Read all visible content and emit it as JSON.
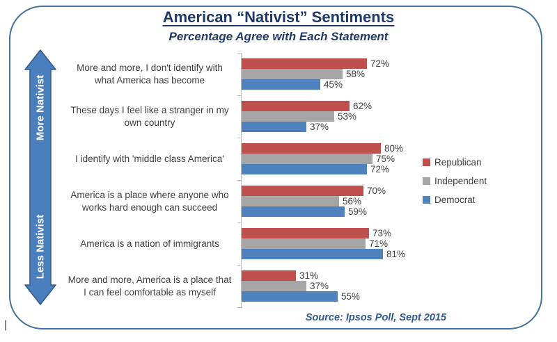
{
  "chart_data": {
    "type": "bar",
    "orientation": "horizontal",
    "title": "American “Nativist” Sentiments",
    "subtitle": "Percentage Agree with Each Statement",
    "source_note": "Source: Ipsos Poll, Sept 2015",
    "unit": "%",
    "value_axis_range": [
      0,
      100
    ],
    "grid": false,
    "value_labels_shown": true,
    "legend_position": "right",
    "categories": [
      "More and more, I don't identify with\nwhat America has become",
      "These days I feel like a stranger in my\nown country",
      "I identify with 'middle class America'",
      "America is a place where anyone who\nworks hard enough can succeed",
      "America is a nation of immigrants",
      "More and more, America is a place that\nI can feel comfortable as myself"
    ],
    "series": [
      {
        "name": "Republican",
        "color": "#C0504D",
        "values": [
          72,
          62,
          80,
          70,
          73,
          31
        ]
      },
      {
        "name": "Independent",
        "color": "#A6A6A6",
        "values": [
          58,
          53,
          75,
          56,
          71,
          37
        ]
      },
      {
        "name": "Democrat",
        "color": "#4F81BD",
        "values": [
          45,
          37,
          72,
          59,
          81,
          55
        ]
      }
    ],
    "category_axis_annotation": {
      "top_label": "More Nativist",
      "bottom_label": "Less Nativist",
      "arrow_fill": "#4A7EBC",
      "arrow_border": "#2E5C8A"
    },
    "style_colors": {
      "axis_line": "#BFBFBF",
      "data_label": "#404040",
      "title_text": "#1F3A68",
      "source_text": "#31588E",
      "frame_border": "#44719E"
    }
  },
  "artifacts": {
    "text_cursor": "|"
  }
}
